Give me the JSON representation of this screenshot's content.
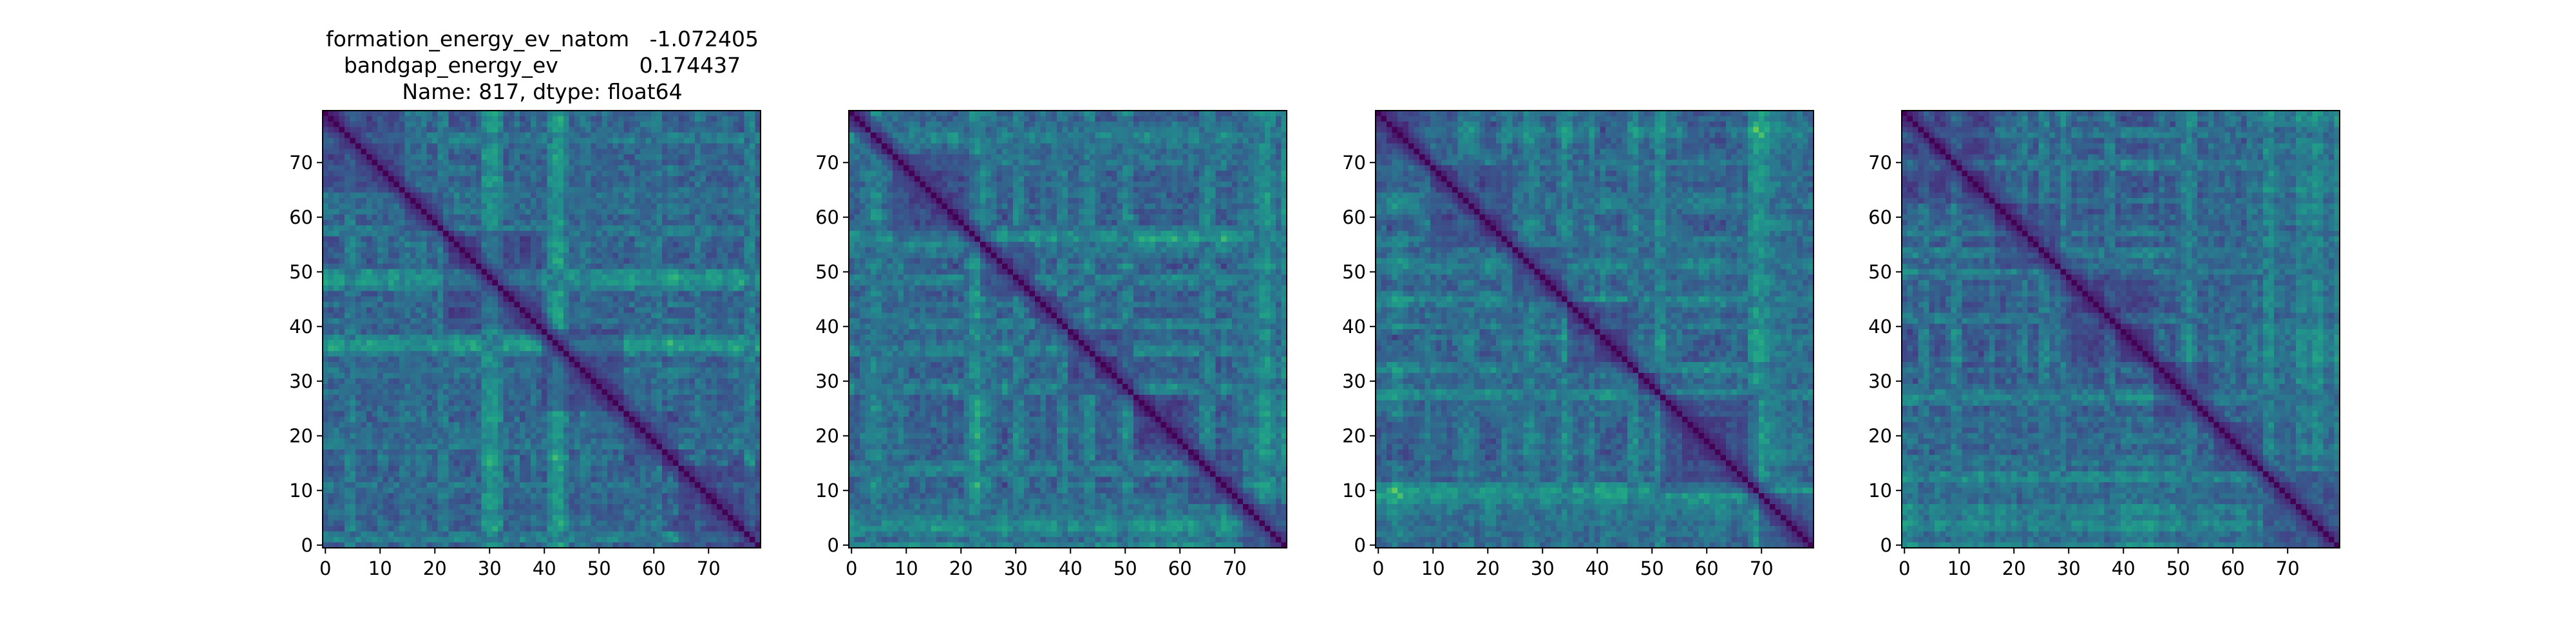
{
  "figure": {
    "title_lines": [
      "formation_energy_ev_natom   -1.072405",
      "bandgap_energy_ev            0.174437",
      "Name: 817, dtype: float64"
    ]
  },
  "chart_data": [
    {
      "type": "heatmap",
      "title": "formation_energy_ev_natom   -1.072405\nbandgap_energy_ev            0.174437\nName: 817, dtype: float64",
      "rows": 80,
      "cols": 80,
      "colormap": "viridis",
      "value_range": [
        0,
        1
      ],
      "diagonal_value": 0,
      "symmetric": true,
      "xticks": [
        "0",
        "10",
        "20",
        "30",
        "40",
        "50",
        "60",
        "70"
      ],
      "yticks": [
        "0",
        "10",
        "20",
        "30",
        "40",
        "50",
        "60",
        "70"
      ],
      "xlim": [
        -0.5,
        79.5
      ],
      "ylim": [
        79.5,
        -0.5
      ],
      "block_boundaries": [
        15,
        22,
        40,
        55,
        65
      ],
      "texture_seed": 11
    },
    {
      "type": "heatmap",
      "title": "",
      "rows": 80,
      "cols": 80,
      "colormap": "viridis",
      "value_range": [
        0,
        1
      ],
      "diagonal_value": 0,
      "symmetric": true,
      "xticks": [
        "0",
        "10",
        "20",
        "30",
        "40",
        "50",
        "60",
        "70"
      ],
      "yticks": [
        "0",
        "10",
        "20",
        "30",
        "40",
        "50",
        "60",
        "70"
      ],
      "xlim": [
        -0.5,
        79.5
      ],
      "ylim": [
        79.5,
        -0.5
      ],
      "block_boundaries": [
        4,
        8,
        24,
        34,
        40,
        52,
        62,
        72
      ],
      "texture_seed": 23
    },
    {
      "type": "heatmap",
      "title": "",
      "rows": 80,
      "cols": 80,
      "colormap": "viridis",
      "value_range": [
        0,
        1
      ],
      "diagonal_value": 0,
      "symmetric": true,
      "xticks": [
        "0",
        "10",
        "20",
        "30",
        "40",
        "50",
        "60",
        "70"
      ],
      "yticks": [
        "0",
        "10",
        "20",
        "30",
        "40",
        "50",
        "60",
        "70"
      ],
      "xlim": [
        -0.5,
        79.5
      ],
      "ylim": [
        79.5,
        -0.5
      ],
      "block_boundaries": [
        10,
        25,
        35,
        48,
        52,
        70
      ],
      "texture_seed": 37
    },
    {
      "type": "heatmap",
      "title": "",
      "rows": 80,
      "cols": 80,
      "colormap": "viridis",
      "value_range": [
        0,
        1
      ],
      "diagonal_value": 0,
      "symmetric": true,
      "xticks": [
        "0",
        "10",
        "20",
        "30",
        "40",
        "50",
        "60",
        "70"
      ],
      "yticks": [
        "0",
        "10",
        "20",
        "30",
        "40",
        "50",
        "60",
        "70"
      ],
      "xlim": [
        -0.5,
        79.5
      ],
      "ylim": [
        79.5,
        -0.5
      ],
      "block_boundaries": [
        17,
        29,
        46,
        57,
        66
      ],
      "texture_seed": 53
    }
  ]
}
